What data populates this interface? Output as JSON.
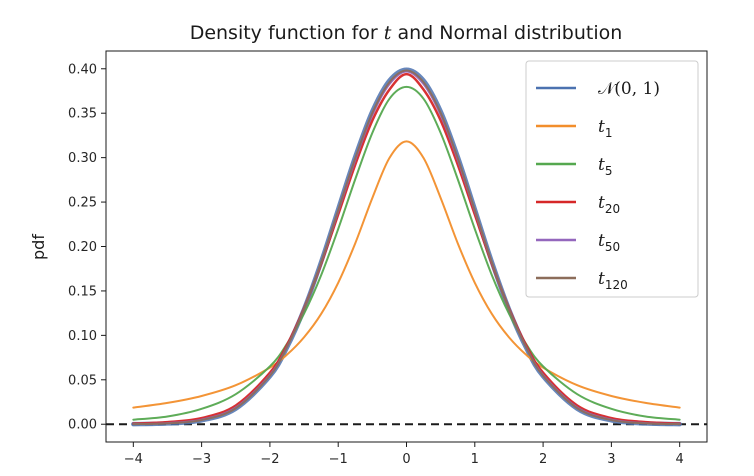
{
  "chart_data": {
    "type": "line",
    "title_prefix": "Density function for ",
    "title_var": "t",
    "title_suffix": " and Normal distribution",
    "xlabel": "",
    "ylabel": "pdf",
    "xlim": [
      -4.4,
      4.4
    ],
    "ylim": [
      -0.02,
      0.42
    ],
    "xticks": [
      -4,
      -3,
      -2,
      -1,
      0,
      1,
      2,
      3,
      4
    ],
    "xtick_labels": [
      "−4",
      "−3",
      "−2",
      "−1",
      "0",
      "1",
      "2",
      "3",
      "4"
    ],
    "yticks": [
      0.0,
      0.05,
      0.1,
      0.15,
      0.2,
      0.25,
      0.3,
      0.35,
      0.4
    ],
    "ytick_labels": [
      "0.00",
      "0.05",
      "0.10",
      "0.15",
      "0.20",
      "0.25",
      "0.30",
      "0.35",
      "0.40"
    ],
    "grid": false,
    "legend_position": "top-right",
    "hline": {
      "y": 0,
      "style": "dashed",
      "color": "#1a1a1a"
    },
    "x": [
      -4,
      -3.5,
      -3,
      -2.5,
      -2,
      -1.75,
      -1.5,
      -1.25,
      -1,
      -0.75,
      -0.5,
      -0.25,
      0,
      0.25,
      0.5,
      0.75,
      1,
      1.25,
      1.5,
      1.75,
      2,
      2.5,
      3,
      3.5,
      4
    ],
    "series": [
      {
        "legend_main": "𝒩(0, 1)",
        "legend_sub": "",
        "color": "#4c72b0",
        "width": 4.5,
        "values": [
          0.0001,
          0.0009,
          0.0044,
          0.0175,
          0.054,
          0.0863,
          0.1295,
          0.1826,
          0.242,
          0.3011,
          0.3521,
          0.3867,
          0.3989,
          0.3867,
          0.3521,
          0.3011,
          0.242,
          0.1826,
          0.1295,
          0.0863,
          0.054,
          0.0175,
          0.0044,
          0.0009,
          0.0001
        ]
      },
      {
        "legend_main": "t",
        "legend_sub": "1",
        "color": "#f28e2b",
        "width": 2,
        "values": [
          0.0187,
          0.024,
          0.0318,
          0.0439,
          0.0637,
          0.0783,
          0.0979,
          0.1241,
          0.1592,
          0.2037,
          0.2546,
          0.2996,
          0.3183,
          0.2996,
          0.2546,
          0.2037,
          0.1592,
          0.1241,
          0.0979,
          0.0783,
          0.0637,
          0.0439,
          0.0318,
          0.024,
          0.0187
        ]
      },
      {
        "legend_main": "t",
        "legend_sub": "5",
        "color": "#55a84f",
        "width": 2,
        "values": [
          0.0051,
          0.0087,
          0.0173,
          0.0338,
          0.0651,
          0.0905,
          0.1245,
          0.1677,
          0.2197,
          0.2758,
          0.3279,
          0.3662,
          0.3796,
          0.3662,
          0.3279,
          0.2758,
          0.2197,
          0.1677,
          0.1245,
          0.0905,
          0.0651,
          0.0338,
          0.0173,
          0.0087,
          0.0051
        ]
      },
      {
        "legend_main": "t",
        "legend_sub": "20",
        "color": "#d62728",
        "width": 2.5,
        "values": [
          0.0007,
          0.0024,
          0.0069,
          0.0211,
          0.058,
          0.0891,
          0.1304,
          0.1805,
          0.236,
          0.2922,
          0.3418,
          0.3765,
          0.394,
          0.3765,
          0.3418,
          0.2922,
          0.236,
          0.1805,
          0.1304,
          0.0891,
          0.058,
          0.0211,
          0.0069,
          0.0024,
          0.0007
        ]
      },
      {
        "legend_main": "t",
        "legend_sub": "50",
        "color": "#9467bd",
        "width": 2,
        "values": [
          0.0002,
          0.0013,
          0.0052,
          0.0188,
          0.0554,
          0.0873,
          0.1298,
          0.1817,
          0.2396,
          0.2975,
          0.3481,
          0.3827,
          0.397,
          0.3827,
          0.3481,
          0.2975,
          0.2396,
          0.1817,
          0.1298,
          0.0873,
          0.0554,
          0.0188,
          0.0052,
          0.0013,
          0.0002
        ]
      },
      {
        "legend_main": "t",
        "legend_sub": "120",
        "color": "#8c6d5a",
        "width": 2,
        "values": [
          0.0001,
          0.001,
          0.0047,
          0.018,
          0.0546,
          0.0868,
          0.1297,
          0.1822,
          0.2409,
          0.2995,
          0.3503,
          0.3849,
          0.3981,
          0.3849,
          0.3503,
          0.2995,
          0.2409,
          0.1822,
          0.1297,
          0.0868,
          0.0546,
          0.018,
          0.0047,
          0.001,
          0.0001
        ]
      }
    ]
  }
}
